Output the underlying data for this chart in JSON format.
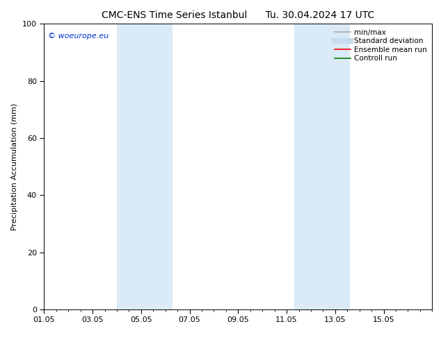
{
  "title": "CMC-ENS Time Series Istanbul      Tu. 30.04.2024 17 UTC",
  "ylabel": "Precipitation Accumulation (mm)",
  "xlim_start": 0,
  "xlim_end": 16,
  "ylim": [
    0,
    100
  ],
  "xtick_labels": [
    "01.05",
    "03.05",
    "05.05",
    "07.05",
    "09.05",
    "11.05",
    "13.05",
    "15.05"
  ],
  "xtick_positions": [
    0,
    2,
    4,
    6,
    8,
    10,
    12,
    14
  ],
  "ytick_labels": [
    "0",
    "20",
    "40",
    "60",
    "80",
    "100"
  ],
  "ytick_positions": [
    0,
    20,
    40,
    60,
    80,
    100
  ],
  "shaded_regions": [
    {
      "x_start": 3.0,
      "x_end": 5.3,
      "color": "#daeaf7"
    },
    {
      "x_start": 10.3,
      "x_end": 12.6,
      "color": "#daeaf7"
    }
  ],
  "watermark_text": "© woeurope.eu",
  "watermark_color": "#0033cc",
  "watermark_fontsize": 8,
  "legend_items": [
    {
      "label": "min/max",
      "color": "#aaaaaa",
      "lw": 1.2,
      "ls": "-"
    },
    {
      "label": "Standard deviation",
      "color": "#c8ddef",
      "lw": 6,
      "ls": "-"
    },
    {
      "label": "Ensemble mean run",
      "color": "red",
      "lw": 1.2,
      "ls": "-"
    },
    {
      "label": "Controll run",
      "color": "green",
      "lw": 1.2,
      "ls": "-"
    }
  ],
  "background_color": "#ffffff",
  "title_fontsize": 10,
  "label_fontsize": 8,
  "tick_fontsize": 8,
  "legend_fontsize": 7.5
}
